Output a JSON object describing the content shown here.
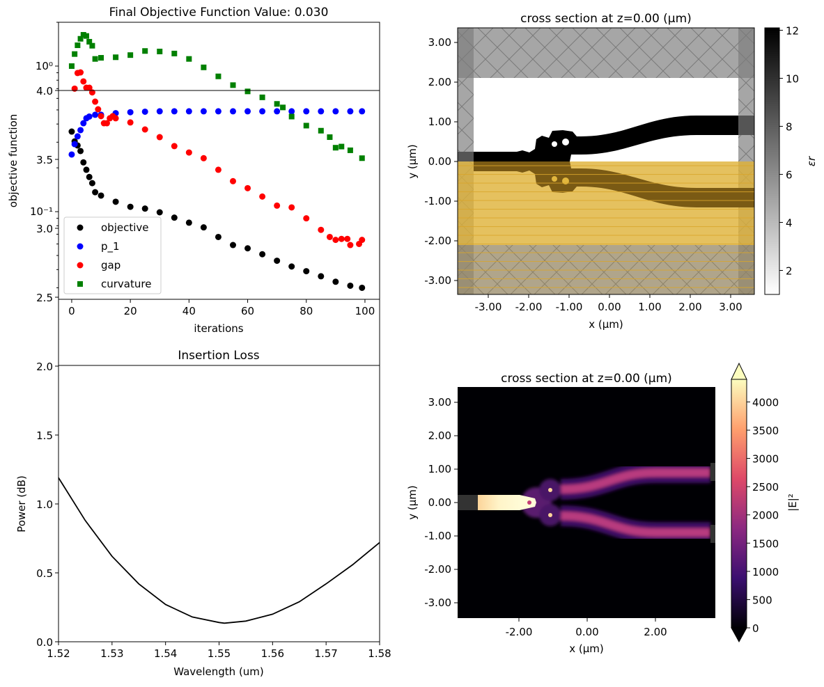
{
  "chart_data": [
    {
      "type": "scatter",
      "title": "Final Objective Function Value: 0.030",
      "xlabel": "iterations",
      "ylabel": "objective function",
      "xlim": [
        -4.5,
        105
      ],
      "ylim": [
        0.025,
        2.0
      ],
      "yscale": "log",
      "xticks": [
        0,
        20,
        40,
        60,
        80,
        100
      ],
      "yticks": [
        1,
        0.1
      ],
      "ytick_labels": [
        "10⁰",
        "10⁻¹"
      ],
      "legend": "lower-left",
      "grid": false,
      "series": [
        {
          "name": "objective",
          "marker": "circle",
          "color": "#000000",
          "x": [
            0,
            1,
            2,
            3,
            4,
            5,
            6,
            7,
            8,
            10,
            15,
            20,
            25,
            30,
            35,
            40,
            45,
            50,
            55,
            60,
            65,
            70,
            75,
            80,
            85,
            90,
            95,
            99
          ],
          "y": [
            0.355,
            0.304,
            0.285,
            0.261,
            0.218,
            0.194,
            0.173,
            0.157,
            0.136,
            0.129,
            0.117,
            0.108,
            0.105,
            0.099,
            0.091,
            0.084,
            0.078,
            0.067,
            0.059,
            0.056,
            0.051,
            0.046,
            0.042,
            0.039,
            0.036,
            0.033,
            0.031,
            0.03
          ]
        },
        {
          "name": "p_1",
          "marker": "circle",
          "color": "#0000ff",
          "x": [
            0,
            1,
            2,
            3,
            4,
            5,
            6,
            8,
            10,
            15,
            20,
            25,
            30,
            35,
            40,
            45,
            50,
            55,
            60,
            65,
            70,
            75,
            80,
            85,
            90,
            95,
            99
          ],
          "y": [
            0.247,
            0.291,
            0.329,
            0.363,
            0.405,
            0.438,
            0.45,
            0.463,
            0.463,
            0.475,
            0.482,
            0.486,
            0.489,
            0.489,
            0.489,
            0.489,
            0.489,
            0.489,
            0.489,
            0.489,
            0.489,
            0.489,
            0.489,
            0.489,
            0.489,
            0.489,
            0.489
          ]
        },
        {
          "name": "gap",
          "marker": "circle",
          "color": "#ff0000",
          "x": [
            1,
            2,
            3,
            4,
            5,
            6,
            7,
            8,
            9,
            10,
            11,
            12,
            13,
            14,
            15,
            20,
            25,
            30,
            35,
            40,
            45,
            50,
            55,
            60,
            65,
            70,
            75,
            80,
            85,
            88,
            90,
            92,
            94,
            95,
            98,
            99
          ],
          "y": [
            0.7,
            0.896,
            0.905,
            0.785,
            0.71,
            0.71,
            0.66,
            0.57,
            0.505,
            0.453,
            0.405,
            0.405,
            0.438,
            0.453,
            0.438,
            0.41,
            0.367,
            0.325,
            0.282,
            0.255,
            0.233,
            0.194,
            0.162,
            0.145,
            0.127,
            0.11,
            0.107,
            0.09,
            0.075,
            0.067,
            0.064,
            0.065,
            0.065,
            0.059,
            0.06,
            0.064
          ]
        },
        {
          "name": "curvature",
          "marker": "square",
          "color": "#008000",
          "x": [
            0,
            1,
            2,
            3,
            4,
            5,
            6,
            7,
            8,
            10,
            15,
            20,
            25,
            30,
            35,
            40,
            45,
            50,
            55,
            60,
            65,
            70,
            72,
            75,
            80,
            85,
            88,
            90,
            92,
            95,
            99
          ],
          "y": [
            1.0,
            1.21,
            1.39,
            1.54,
            1.64,
            1.61,
            1.47,
            1.38,
            1.12,
            1.14,
            1.15,
            1.19,
            1.27,
            1.26,
            1.22,
            1.12,
            0.98,
            0.85,
            0.74,
            0.67,
            0.61,
            0.55,
            0.52,
            0.45,
            0.39,
            0.36,
            0.325,
            0.275,
            0.28,
            0.264,
            0.233
          ]
        }
      ]
    },
    {
      "type": "heatmap",
      "title": "cross section at z=0.00 (µm)",
      "xlabel": "x (µm)",
      "ylabel": "y (µm)",
      "xticks": [
        "-3.00",
        "-2.00",
        "-1.00",
        "0.00",
        "1.00",
        "2.00",
        "3.00"
      ],
      "yticks": [
        "3.00",
        "2.00",
        "1.00",
        "0.00",
        "-1.00",
        "-2.00",
        "-3.00"
      ],
      "colorbar": {
        "label": "εr",
        "min": 1,
        "max": 12.1,
        "ticks": [
          "2",
          "4",
          "6",
          "8",
          "10",
          "12"
        ],
        "colormap": "gray_r"
      }
    },
    {
      "type": "line",
      "title": "Insertion Loss",
      "xlabel": "Wavelength (um)",
      "ylabel": "Power (dB)",
      "xlim": [
        1.52,
        1.58
      ],
      "ylim": [
        0,
        4
      ],
      "xticks": [
        "1.52",
        "1.53",
        "1.54",
        "1.55",
        "1.56",
        "1.57",
        "1.58"
      ],
      "yticks": [
        "0.0",
        "0.5",
        "1.0",
        "1.5",
        "2.0",
        "2.5",
        "3.0",
        "3.5",
        "4.0"
      ],
      "grid": false,
      "series": [
        {
          "color": "#000000",
          "x": [
            1.52,
            1.525,
            1.53,
            1.535,
            1.54,
            1.545,
            1.55,
            1.551,
            1.555,
            1.56,
            1.565,
            1.57,
            1.575,
            1.58
          ],
          "y": [
            1.19,
            0.88,
            0.62,
            0.42,
            0.27,
            0.18,
            0.14,
            0.135,
            0.15,
            0.2,
            0.29,
            0.42,
            0.56,
            0.72
          ]
        }
      ]
    },
    {
      "type": "heatmap",
      "title": "cross section at z=0.00 (µm)",
      "xlabel": "x (µm)",
      "ylabel": "y (µm)",
      "xticks": [
        "-2.00",
        "0.00",
        "2.00"
      ],
      "yticks": [
        "3.00",
        "2.00",
        "1.00",
        "0.00",
        "-1.00",
        "-2.00",
        "-3.00"
      ],
      "colorbar": {
        "label": "|E|²",
        "min": 0,
        "max": 4400,
        "extend": "both",
        "ticks": [
          "0",
          "500",
          "1000",
          "1500",
          "2000",
          "2500",
          "3000",
          "3500",
          "4000"
        ],
        "colormap": "magma"
      }
    }
  ]
}
